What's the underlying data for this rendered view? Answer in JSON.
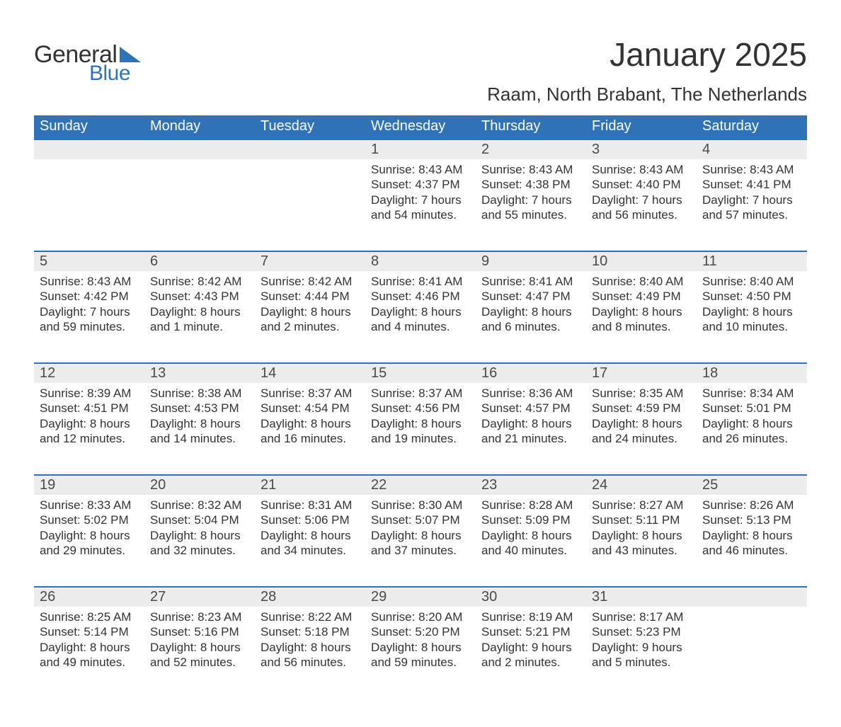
{
  "logo": {
    "text1": "General",
    "text2": "Blue",
    "tri_color": "#2f72b8"
  },
  "title": "January 2025",
  "location": "Raam, North Brabant, The Netherlands",
  "colors": {
    "header_bg": "#2f72b8",
    "header_text": "#ffffff",
    "daynum_bg": "#ececec",
    "row_border": "#2f72b8",
    "body_text": "#333333",
    "page_bg": "#ffffff"
  },
  "typography": {
    "title_fontsize": 46,
    "location_fontsize": 26,
    "header_fontsize": 20,
    "daynum_fontsize": 20,
    "cell_fontsize": 17
  },
  "weekdays": [
    "Sunday",
    "Monday",
    "Tuesday",
    "Wednesday",
    "Thursday",
    "Friday",
    "Saturday"
  ],
  "weeks": [
    [
      null,
      null,
      null,
      {
        "n": "1",
        "sunrise": "8:43 AM",
        "sunset": "4:37 PM",
        "daylight": "7 hours and 54 minutes."
      },
      {
        "n": "2",
        "sunrise": "8:43 AM",
        "sunset": "4:38 PM",
        "daylight": "7 hours and 55 minutes."
      },
      {
        "n": "3",
        "sunrise": "8:43 AM",
        "sunset": "4:40 PM",
        "daylight": "7 hours and 56 minutes."
      },
      {
        "n": "4",
        "sunrise": "8:43 AM",
        "sunset": "4:41 PM",
        "daylight": "7 hours and 57 minutes."
      }
    ],
    [
      {
        "n": "5",
        "sunrise": "8:43 AM",
        "sunset": "4:42 PM",
        "daylight": "7 hours and 59 minutes."
      },
      {
        "n": "6",
        "sunrise": "8:42 AM",
        "sunset": "4:43 PM",
        "daylight": "8 hours and 1 minute."
      },
      {
        "n": "7",
        "sunrise": "8:42 AM",
        "sunset": "4:44 PM",
        "daylight": "8 hours and 2 minutes."
      },
      {
        "n": "8",
        "sunrise": "8:41 AM",
        "sunset": "4:46 PM",
        "daylight": "8 hours and 4 minutes."
      },
      {
        "n": "9",
        "sunrise": "8:41 AM",
        "sunset": "4:47 PM",
        "daylight": "8 hours and 6 minutes."
      },
      {
        "n": "10",
        "sunrise": "8:40 AM",
        "sunset": "4:49 PM",
        "daylight": "8 hours and 8 minutes."
      },
      {
        "n": "11",
        "sunrise": "8:40 AM",
        "sunset": "4:50 PM",
        "daylight": "8 hours and 10 minutes."
      }
    ],
    [
      {
        "n": "12",
        "sunrise": "8:39 AM",
        "sunset": "4:51 PM",
        "daylight": "8 hours and 12 minutes."
      },
      {
        "n": "13",
        "sunrise": "8:38 AM",
        "sunset": "4:53 PM",
        "daylight": "8 hours and 14 minutes."
      },
      {
        "n": "14",
        "sunrise": "8:37 AM",
        "sunset": "4:54 PM",
        "daylight": "8 hours and 16 minutes."
      },
      {
        "n": "15",
        "sunrise": "8:37 AM",
        "sunset": "4:56 PM",
        "daylight": "8 hours and 19 minutes."
      },
      {
        "n": "16",
        "sunrise": "8:36 AM",
        "sunset": "4:57 PM",
        "daylight": "8 hours and 21 minutes."
      },
      {
        "n": "17",
        "sunrise": "8:35 AM",
        "sunset": "4:59 PM",
        "daylight": "8 hours and 24 minutes."
      },
      {
        "n": "18",
        "sunrise": "8:34 AM",
        "sunset": "5:01 PM",
        "daylight": "8 hours and 26 minutes."
      }
    ],
    [
      {
        "n": "19",
        "sunrise": "8:33 AM",
        "sunset": "5:02 PM",
        "daylight": "8 hours and 29 minutes."
      },
      {
        "n": "20",
        "sunrise": "8:32 AM",
        "sunset": "5:04 PM",
        "daylight": "8 hours and 32 minutes."
      },
      {
        "n": "21",
        "sunrise": "8:31 AM",
        "sunset": "5:06 PM",
        "daylight": "8 hours and 34 minutes."
      },
      {
        "n": "22",
        "sunrise": "8:30 AM",
        "sunset": "5:07 PM",
        "daylight": "8 hours and 37 minutes."
      },
      {
        "n": "23",
        "sunrise": "8:28 AM",
        "sunset": "5:09 PM",
        "daylight": "8 hours and 40 minutes."
      },
      {
        "n": "24",
        "sunrise": "8:27 AM",
        "sunset": "5:11 PM",
        "daylight": "8 hours and 43 minutes."
      },
      {
        "n": "25",
        "sunrise": "8:26 AM",
        "sunset": "5:13 PM",
        "daylight": "8 hours and 46 minutes."
      }
    ],
    [
      {
        "n": "26",
        "sunrise": "8:25 AM",
        "sunset": "5:14 PM",
        "daylight": "8 hours and 49 minutes."
      },
      {
        "n": "27",
        "sunrise": "8:23 AM",
        "sunset": "5:16 PM",
        "daylight": "8 hours and 52 minutes."
      },
      {
        "n": "28",
        "sunrise": "8:22 AM",
        "sunset": "5:18 PM",
        "daylight": "8 hours and 56 minutes."
      },
      {
        "n": "29",
        "sunrise": "8:20 AM",
        "sunset": "5:20 PM",
        "daylight": "8 hours and 59 minutes."
      },
      {
        "n": "30",
        "sunrise": "8:19 AM",
        "sunset": "5:21 PM",
        "daylight": "9 hours and 2 minutes."
      },
      {
        "n": "31",
        "sunrise": "8:17 AM",
        "sunset": "5:23 PM",
        "daylight": "9 hours and 5 minutes."
      },
      null
    ]
  ],
  "label_sunrise": "Sunrise: ",
  "label_sunset": "Sunset: ",
  "label_daylight": "Daylight: "
}
